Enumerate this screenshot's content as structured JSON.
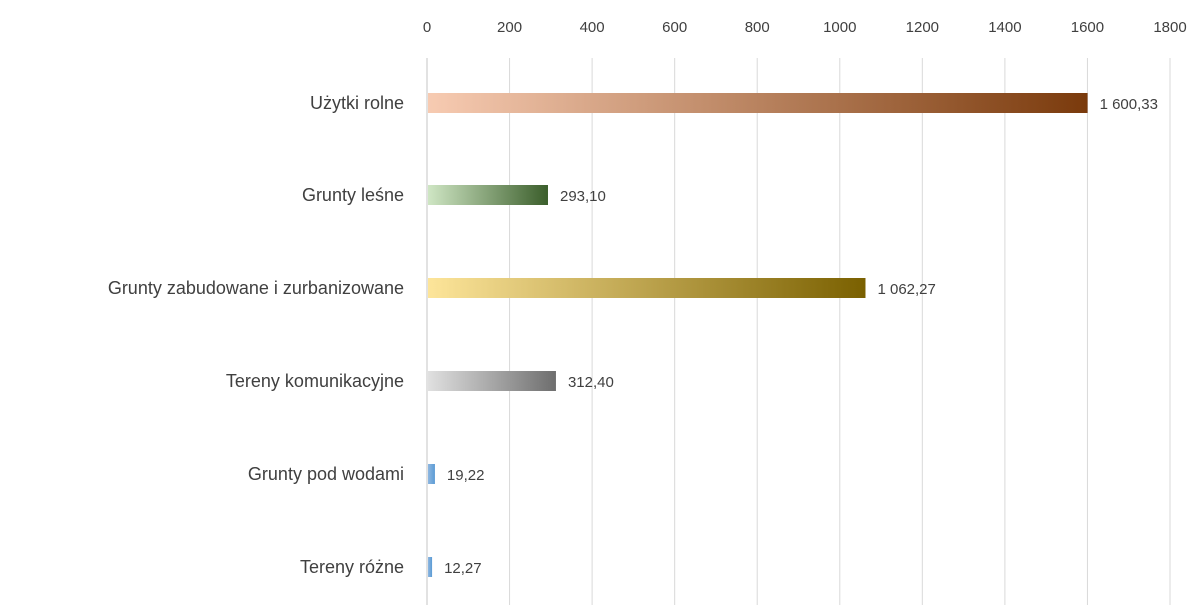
{
  "chart_data": {
    "type": "bar",
    "orientation": "horizontal",
    "title": "",
    "xlabel": "",
    "ylabel": "",
    "xlim": [
      0,
      1800
    ],
    "x_ticks": [
      0,
      200,
      400,
      600,
      800,
      1000,
      1200,
      1400,
      1600,
      1800
    ],
    "x_axis_position": "top",
    "grid": true,
    "legend": "none",
    "categories": [
      "Użytki rolne",
      "Grunty leśne",
      "Grunty zabudowane i zurbanizowane",
      "Tereny komunikacyjne",
      "Grunty pod wodami",
      "Tereny różne"
    ],
    "values": [
      1600.33,
      293.1,
      1062.27,
      312.4,
      19.22,
      12.27
    ],
    "value_labels": [
      "1 600,33",
      "293,10",
      "1 062,27",
      "312,40",
      "19,22",
      "12,27"
    ],
    "colors": [
      [
        "#f7cbb2",
        "#7a3a0c"
      ],
      [
        "#cfe6c4",
        "#3b5e2b"
      ],
      [
        "#fde59a",
        "#7a6000"
      ],
      [
        "#e0e0e0",
        "#6e6e6e"
      ],
      [
        "#8fb7e0",
        "#5b9bd5"
      ],
      [
        "#8fb7e0",
        "#5b9bd5"
      ]
    ]
  }
}
